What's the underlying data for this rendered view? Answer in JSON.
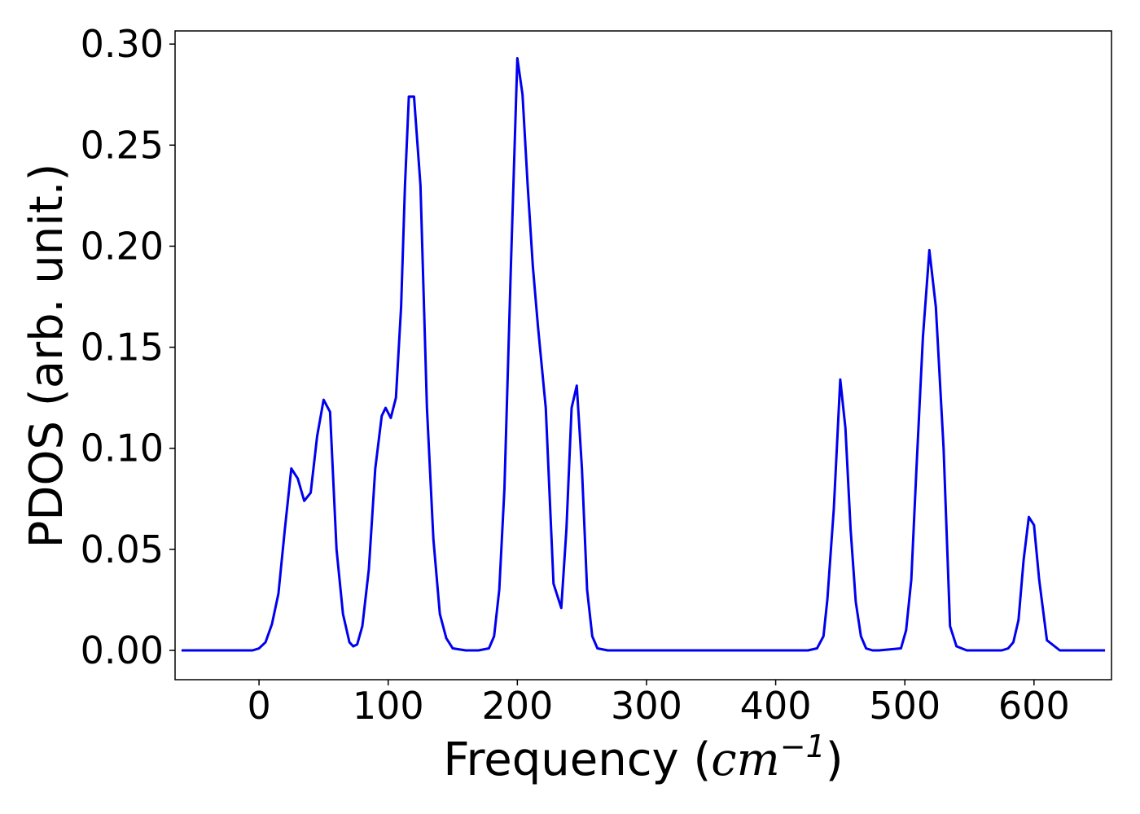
{
  "chart_data": {
    "type": "line",
    "title": "",
    "xlabel": "Frequency (",
    "xlabel_math": "cm",
    "xlabel_exp": "−1",
    "xlabel_close": ")",
    "ylabel": "PDOS (arb. unit.)",
    "xlim": [
      -65,
      660
    ],
    "ylim": [
      -0.0145,
      0.3065
    ],
    "xticks": [
      0,
      100,
      200,
      300,
      400,
      500,
      600
    ],
    "xtick_labels": [
      "0",
      "100",
      "200",
      "300",
      "400",
      "500",
      "600"
    ],
    "yticks": [
      0.0,
      0.05,
      0.1,
      0.15,
      0.2,
      0.25,
      0.3
    ],
    "ytick_labels": [
      "0.00",
      "0.05",
      "0.10",
      "0.15",
      "0.20",
      "0.25",
      "0.30"
    ],
    "grid": false,
    "legend": "none",
    "series": [
      {
        "color": "#0000ee",
        "x": [
          -60,
          -40,
          -20,
          -5,
          0,
          5,
          10,
          15,
          20,
          25,
          30,
          35,
          40,
          45,
          50,
          55,
          60,
          65,
          70,
          73,
          76,
          80,
          85,
          90,
          95,
          98,
          102,
          106,
          110,
          113,
          116,
          120,
          125,
          130,
          135,
          140,
          145,
          150,
          160,
          170,
          178,
          182,
          186,
          190,
          195,
          200,
          204,
          208,
          212,
          216,
          222,
          228,
          234,
          238,
          242,
          246,
          250,
          254,
          258,
          262,
          270,
          300,
          350,
          400,
          425,
          432,
          437,
          440,
          445,
          450,
          454,
          458,
          462,
          466,
          470,
          475,
          480,
          497,
          501,
          505,
          509,
          514,
          519,
          524,
          530,
          535,
          540,
          548,
          560,
          575,
          580,
          584,
          588,
          592,
          596,
          600,
          604,
          610,
          620,
          655
        ],
        "y": [
          0.0,
          0.0,
          0.0,
          0.0,
          0.001,
          0.004,
          0.013,
          0.028,
          0.06,
          0.09,
          0.085,
          0.074,
          0.078,
          0.106,
          0.124,
          0.118,
          0.05,
          0.018,
          0.004,
          0.002,
          0.003,
          0.012,
          0.04,
          0.09,
          0.116,
          0.12,
          0.115,
          0.125,
          0.17,
          0.23,
          0.274,
          0.274,
          0.23,
          0.12,
          0.055,
          0.018,
          0.006,
          0.001,
          0.0,
          0.0,
          0.001,
          0.007,
          0.03,
          0.08,
          0.19,
          0.293,
          0.275,
          0.23,
          0.19,
          0.16,
          0.12,
          0.033,
          0.021,
          0.06,
          0.12,
          0.131,
          0.09,
          0.03,
          0.007,
          0.001,
          0.0,
          0.0,
          0.0,
          0.0,
          0.0,
          0.001,
          0.007,
          0.025,
          0.07,
          0.134,
          0.11,
          0.06,
          0.024,
          0.007,
          0.001,
          0.0,
          0.0,
          0.001,
          0.01,
          0.035,
          0.09,
          0.155,
          0.198,
          0.17,
          0.1,
          0.012,
          0.002,
          0.0,
          0.0,
          0.0,
          0.001,
          0.004,
          0.015,
          0.045,
          0.066,
          0.062,
          0.035,
          0.005,
          0.0,
          0.0
        ]
      }
    ]
  }
}
